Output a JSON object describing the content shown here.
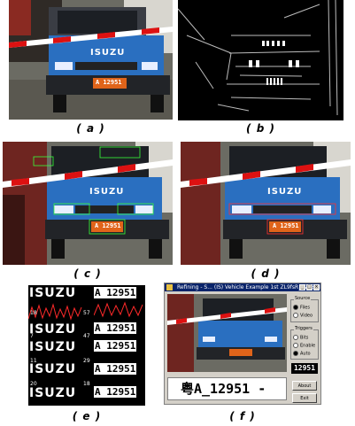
{
  "captions": [
    "( a )",
    "( b )",
    "( c )",
    "( d )",
    "( e )",
    "( f )"
  ],
  "truck": {
    "brand": "ISUZU",
    "plate": "A 12951",
    "cab_color": "#2a6fc0",
    "plate_color": "#e0641a"
  },
  "panel_e": {
    "word": "ISUZU",
    "plate": "A 12951",
    "left_numbers": [
      "18",
      "7",
      "11",
      "20"
    ],
    "right_numbers": [
      "57",
      "47",
      "29",
      "18"
    ]
  },
  "panel_f": {
    "window_title": "Refining - S... (IS) Vehicle Example 1st ZL9fsR_12951.bmp",
    "source_group": {
      "title": "Source",
      "options": [
        "Files",
        "Video"
      ],
      "selected": "Files"
    },
    "trigger_group": {
      "title": "Triggers",
      "options": [
        "Bits",
        "Enable",
        "Auto"
      ],
      "selected": "Auto"
    },
    "mini_plate": "12951",
    "result_text": "粤A_12951 -",
    "buttons": [
      "About",
      "Exit"
    ]
  }
}
